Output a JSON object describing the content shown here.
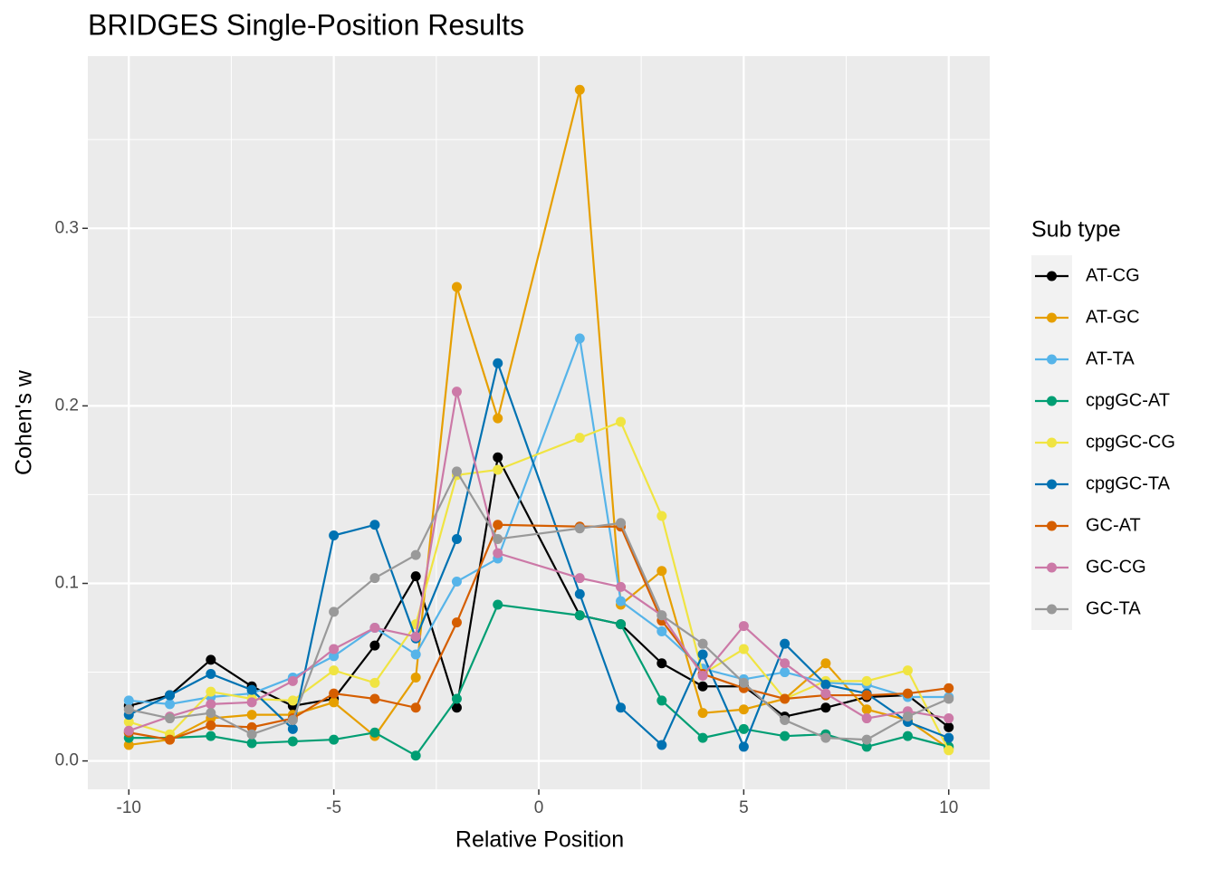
{
  "chart_data": {
    "type": "line",
    "title": "BRIDGES Single-Position Results",
    "x_label": "Relative Position",
    "y_label": "Cohen's w",
    "legend_title": "Sub type",
    "legend": "right",
    "grid": true,
    "x": [
      -10,
      -9,
      -8,
      -7,
      -6,
      -5,
      -4,
      -3,
      -2,
      -1,
      1,
      2,
      3,
      4,
      5,
      6,
      7,
      8,
      9,
      10
    ],
    "xlim": [
      -11,
      11
    ],
    "xticks": [
      -10,
      -5,
      0,
      5,
      10
    ],
    "ylim": [
      -0.016,
      0.397
    ],
    "yticks": [
      {
        "value": 0,
        "label": "0.0"
      },
      0.1,
      0.2,
      0.3
    ],
    "series": [
      {
        "name": "AT-CG",
        "color": "#000000",
        "values": [
          0.031,
          0.037,
          0.057,
          0.042,
          0.031,
          0.035,
          0.065,
          0.104,
          0.03,
          0.171,
          0.082,
          0.077,
          0.055,
          0.042,
          0.042,
          0.025,
          0.03,
          0.036,
          0.037,
          0.019
        ]
      },
      {
        "name": "AT-GC",
        "color": "#E69F00",
        "values": [
          0.009,
          0.012,
          0.024,
          0.026,
          0.026,
          0.033,
          0.014,
          0.047,
          0.267,
          0.193,
          0.378,
          0.088,
          0.107,
          0.027,
          0.029,
          0.035,
          0.055,
          0.029,
          0.023,
          0.007
        ]
      },
      {
        "name": "AT-TA",
        "color": "#56B4E9",
        "values": [
          0.034,
          0.032,
          0.036,
          0.038,
          0.047,
          0.059,
          0.075,
          0.06,
          0.101,
          0.114,
          0.238,
          0.09,
          0.073,
          0.052,
          0.046,
          0.05,
          0.044,
          0.043,
          0.036,
          0.036
        ]
      },
      {
        "name": "cpgGC-AT",
        "color": "#009E73",
        "values": [
          0.013,
          0.013,
          0.014,
          0.01,
          0.011,
          0.012,
          0.016,
          0.003,
          0.035,
          0.088,
          0.082,
          0.077,
          0.034,
          0.013,
          0.018,
          0.014,
          0.015,
          0.008,
          0.014,
          0.008
        ]
      },
      {
        "name": "cpgGC-CG",
        "color": "#F0E442",
        "values": [
          0.022,
          0.015,
          0.039,
          0.035,
          0.034,
          0.051,
          0.044,
          0.077,
          0.161,
          0.164,
          0.182,
          0.191,
          0.138,
          0.049,
          0.063,
          0.035,
          0.045,
          0.045,
          0.051,
          0.006
        ]
      },
      {
        "name": "cpgGC-TA",
        "color": "#0072B2",
        "values": [
          0.026,
          0.037,
          0.049,
          0.04,
          0.018,
          0.127,
          0.133,
          0.069,
          0.125,
          0.224,
          0.094,
          0.03,
          0.009,
          0.06,
          0.008,
          0.066,
          0.043,
          0.038,
          0.022,
          0.013
        ]
      },
      {
        "name": "GC-AT",
        "color": "#D55E00",
        "values": [
          0.016,
          0.012,
          0.02,
          0.019,
          0.024,
          0.038,
          0.035,
          0.03,
          0.078,
          0.133,
          0.132,
          0.132,
          0.079,
          0.049,
          0.041,
          0.035,
          0.037,
          0.037,
          0.038,
          0.041
        ]
      },
      {
        "name": "GC-CG",
        "color": "#CC79A7",
        "values": [
          0.017,
          0.025,
          0.032,
          0.033,
          0.045,
          0.063,
          0.075,
          0.07,
          0.208,
          0.117,
          0.103,
          0.098,
          0.082,
          0.048,
          0.076,
          0.055,
          0.038,
          0.024,
          0.028,
          0.024
        ]
      },
      {
        "name": "GC-TA",
        "color": "#999999",
        "values": [
          0.029,
          0.024,
          0.027,
          0.015,
          0.023,
          0.084,
          0.103,
          0.116,
          0.163,
          0.125,
          0.131,
          0.134,
          0.082,
          0.066,
          0.044,
          0.023,
          0.013,
          0.012,
          0.025,
          0.035
        ]
      }
    ]
  }
}
